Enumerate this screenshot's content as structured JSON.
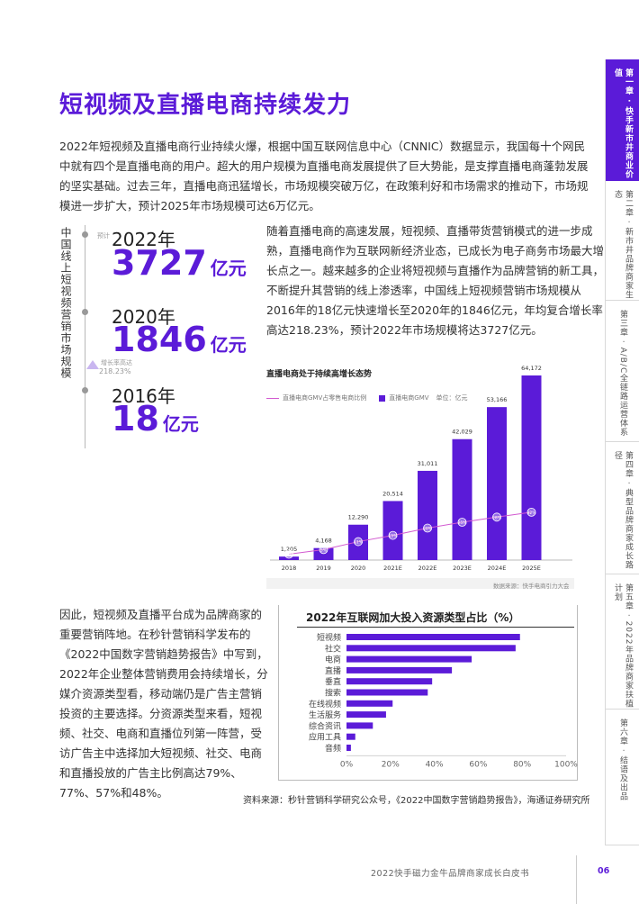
{
  "nav": {
    "chapters": [
      "第一章 · 快手新市井商业价值",
      "第二章 · 新市井品牌商家生态",
      "第三章 · A/B/C全链路运营体系",
      "第四章 · 典型品牌商家成长路径",
      "第五章 · 2022年品牌商家扶植计划",
      "第六章 · 结语及出品"
    ],
    "active_index": 0,
    "active_color": "#5b1bd8"
  },
  "page": {
    "title": "短视频及直播电商持续发力",
    "intro": "2022年短视频及直播电商行业持续火爆，根据中国互联网信息中心（CNNIC）数据显示，我国每十个网民中就有四个是直播电商的用户。超大的用户规模为直播电商发展提供了巨大势能，是支撑直播电商蓬勃发展的坚实基础。过去三年，直播电商迅猛增长，市场规模突破万亿，在政策利好和市场需求的推动下，市场规模进一步扩大，预计2025年市场规模可达6万亿元。",
    "right_paragraph": "随着直播电商的高速发展，短视频、直播带货营销模式的进一步成熟，直播电商作为互联网新经济业态，已成长为电子商务市场最大增长点之一。越来越多的企业将短视频与直播作为品牌营销的新工具，不断提升其营销的线上渗透率，中国线上短视频营销市场规模从2016年的18亿元快速增长至2020年的1846亿元，年均复合增长率高达218.23%，预计2022年市场规模将达3727亿元。",
    "left_paragraph": "因此，短视频及直播平台成为品牌商家的重要营销阵地。在秒针营销科学发布的《2022中国数字营销趋势报告》中写到，2022年企业整体营销费用会持续增长，分媒介资源类型看，移动端仍是广告主营销投资的主要选择。分资源类型来看，短视频、社交、电商和直播位列第一阵营，受访广告主中选择加大短视频、社交、电商和直播投放的广告主比例高达79%、77%、57%和48%。",
    "source": "资料来源：秒针营销科学研究公众号，《2022中国数字营销趋势报告》，海通证券研究所",
    "accent": "#5b1bd8"
  },
  "stats": {
    "vertical_label": "中国线上短视频营销市场规模",
    "forecast_note": "预计",
    "items": [
      {
        "year": "2022年",
        "value": "3727",
        "unit": "亿元"
      },
      {
        "year": "2020年",
        "value": "1846",
        "unit": "亿元"
      },
      {
        "year": "2016年",
        "value": "18",
        "unit": "亿元"
      }
    ],
    "cagr_label": "增长率高达",
    "cagr_value": "218.23%"
  },
  "chart_data": [
    {
      "type": "bar",
      "title": "直播电商处于持续高增长态势",
      "legend": {
        "line": "直播电商GMV占零售电商比例",
        "bar": "直播电商GMV",
        "unit": "单位：亿元"
      },
      "categories": [
        "2018",
        "2019",
        "2020",
        "2021E",
        "2022E",
        "2023E",
        "2024E",
        "2025E"
      ],
      "values": [
        1205,
        4168,
        12290,
        20514,
        31011,
        42029,
        53166,
        64172
      ],
      "value_labels": [
        "1,205",
        "4,168",
        "12,290",
        "20,514",
        "31,011",
        "42,029",
        "53,166",
        "64,172"
      ],
      "series": [
        {
          "name": "直播电商GMV",
          "values": [
            1205,
            4168,
            12290,
            20514,
            31011,
            42029,
            53166,
            64172
          ]
        },
        {
          "name": "直播电商GMV占零售电商比例",
          "values": [
            1.6,
            4.9,
            10.6,
            15.1,
            20.3,
            24.5,
            28.2,
            31.7
          ]
        }
      ],
      "ratio_labels": [
        "2%",
        "5%",
        "11%",
        "15%",
        "20%",
        "25%",
        "28%",
        "32%"
      ],
      "source": "数据来源：快手电商引力大会",
      "colors": {
        "bar": "#5b1bd8",
        "line": "#d25ad0"
      }
    },
    {
      "type": "bar",
      "orientation": "horizontal",
      "title": "2022年互联网加大投入资源类型占比（%）",
      "categories": [
        "短视频",
        "社交",
        "电商",
        "直播",
        "垂直",
        "搜索",
        "在线视频",
        "生活服务",
        "综合资讯",
        "应用工具",
        "音频"
      ],
      "values": [
        79,
        77,
        57,
        48,
        39,
        37,
        21,
        18,
        12,
        4,
        2
      ],
      "xticks": [
        "0%",
        "20%",
        "40%",
        "60%",
        "80%",
        "100%"
      ],
      "xlim": [
        0,
        100
      ],
      "colors": {
        "bar": "#5b1bd8"
      }
    }
  ],
  "footer": {
    "title": "2022快手磁力金牛品牌商家成长白皮书",
    "page_number": "06"
  }
}
